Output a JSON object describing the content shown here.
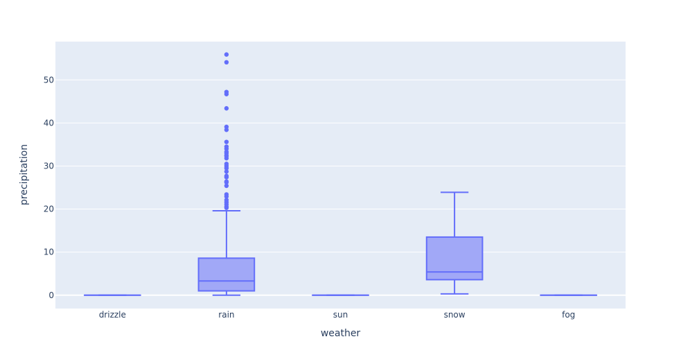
{
  "chart_data": {
    "type": "box",
    "title": "",
    "xlabel": "weather",
    "ylabel": "precipitation",
    "ylim": [
      -3.1,
      58.9
    ],
    "yticks": [
      0,
      10,
      20,
      30,
      40,
      50
    ],
    "ytick_labels": [
      "0",
      "10",
      "20",
      "30",
      "40",
      "50"
    ],
    "grid": true,
    "legend": "none",
    "colors": {
      "plot_bg": "#e5ecf6",
      "grid": "#ffffff",
      "box_line": "#636efa",
      "box_fill": "#a1a8f7",
      "text": "#2a3f5f"
    },
    "categories": [
      "drizzle",
      "rain",
      "sun",
      "snow",
      "fog"
    ],
    "boxes": [
      {
        "category": "drizzle",
        "lower_fence": 0,
        "q1": 0,
        "median": 0,
        "q3": 0,
        "upper_fence": 0,
        "outliers": []
      },
      {
        "category": "rain",
        "lower_fence": 0,
        "q1": 1.0,
        "median": 3.3,
        "q3": 8.6,
        "upper_fence": 19.6,
        "outliers": [
          20.3,
          20.6,
          21.1,
          21.6,
          22.1,
          22.9,
          23.4,
          25.4,
          26.2,
          26.4,
          27.4,
          27.7,
          28.7,
          29.5,
          30.0,
          30.5,
          31.8,
          32.3,
          32.5,
          33.0,
          33.3,
          34.0,
          34.5,
          35.6,
          38.4,
          39.1,
          43.4,
          46.7,
          47.2,
          54.1,
          55.9
        ]
      },
      {
        "category": "sun",
        "lower_fence": 0,
        "q1": 0,
        "median": 0,
        "q3": 0,
        "upper_fence": 0,
        "outliers": []
      },
      {
        "category": "snow",
        "lower_fence": 0.3,
        "q1": 3.6,
        "median": 5.4,
        "q3": 13.5,
        "upper_fence": 23.9,
        "outliers": []
      },
      {
        "category": "fog",
        "lower_fence": 0,
        "q1": 0,
        "median": 0,
        "q3": 0,
        "upper_fence": 0,
        "outliers": []
      }
    ]
  }
}
